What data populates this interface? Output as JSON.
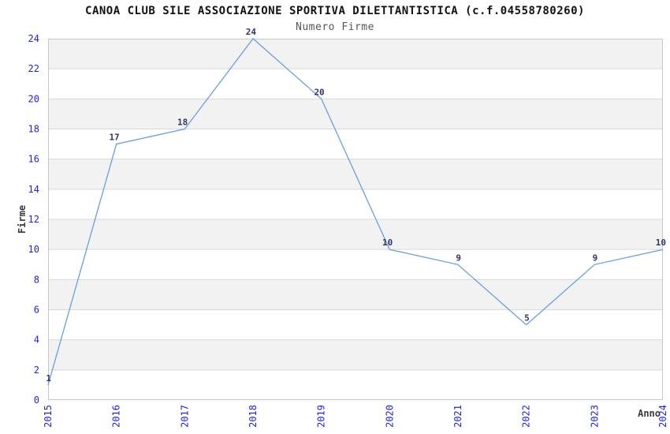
{
  "chart_data": {
    "type": "line",
    "title": "CANOA CLUB SILE ASSOCIAZIONE SPORTIVA DILETTANTISTICA (c.f.04558780260)",
    "subtitle": "Numero Firme",
    "xlabel": "Anno",
    "ylabel": "Firme",
    "categories": [
      "2015",
      "2016",
      "2017",
      "2018",
      "2019",
      "2020",
      "2021",
      "2022",
      "2023",
      "2024"
    ],
    "values": [
      1,
      17,
      18,
      24,
      20,
      10,
      9,
      5,
      9,
      10
    ],
    "ylim": [
      0,
      24
    ],
    "ytick_step": 2,
    "yticks": [
      0,
      2,
      4,
      6,
      8,
      10,
      12,
      14,
      16,
      18,
      20,
      22,
      24
    ],
    "grid": "horizontal",
    "background_bands": "alternating 2-unit bands, shaded on 2-4, 6-8, 10-12, 14-16, 18-20, 22-24",
    "legend_position": "none",
    "point_labels_visible": true,
    "colors": {
      "line": "#699fe0",
      "tick_labels": "#2222dd",
      "value_labels": "#333366",
      "band_shaded": "#f2f2f2",
      "band_plain": "#ffffff",
      "gridline": "#d9d9d9",
      "plot_border": "#c8c8c8",
      "title": "#111111",
      "subtitle": "#555555",
      "axis_titles": "#3a3a3a"
    }
  }
}
